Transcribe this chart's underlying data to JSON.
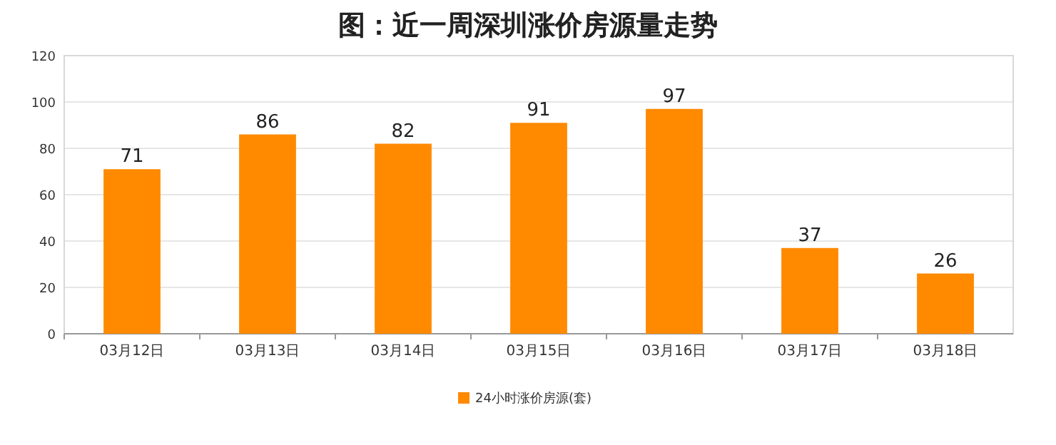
{
  "chart_data": {
    "type": "bar",
    "title": "图：近一周深圳涨价房源量走势",
    "categories": [
      "03月12日",
      "03月13日",
      "03月14日",
      "03月15日",
      "03月16日",
      "03月17日",
      "03月18日"
    ],
    "series": [
      {
        "name": "24小时涨价房源(套)",
        "color": "#ff8a00",
        "values": [
          71,
          86,
          82,
          91,
          97,
          37,
          26
        ]
      }
    ],
    "ylim": [
      0,
      120
    ],
    "yticks": [
      0,
      20,
      40,
      60,
      80,
      100,
      120
    ],
    "grid": "y",
    "legend": "bottom",
    "data_labels": true
  }
}
